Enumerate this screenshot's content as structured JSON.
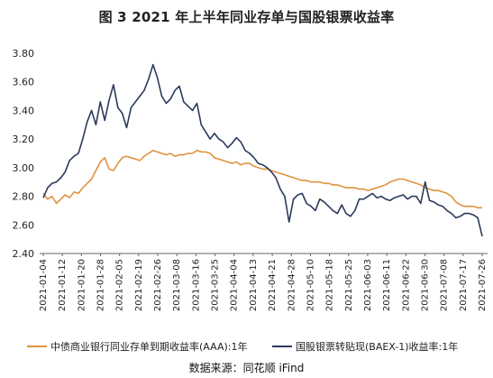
{
  "chart_data": {
    "type": "line",
    "title": "图 3 2021 年上半年同业存单与国股银票收益率",
    "source": "数据来源：同花顺 iFind",
    "ylim": [
      2.4,
      3.8
    ],
    "yticks": [
      "3.80",
      "3.60",
      "3.40",
      "3.20",
      "3.00",
      "2.80",
      "2.60",
      "2.40"
    ],
    "xtick_labels": [
      "2021-01-04",
      "2021-01-12",
      "2021-01-20",
      "2021-01-28",
      "2021-02-05",
      "2021-02-19",
      "2021-02-26",
      "2021-03-08",
      "2021-03-16",
      "2021-03-25",
      "2021-04-04",
      "2021-04-13",
      "2021-04-21",
      "2021-04-28",
      "2021-05-10",
      "2021-05-18",
      "2021-05-25",
      "2021-06-03",
      "2021-06-11",
      "2021-06-22",
      "2021-06-30",
      "2021-07-08",
      "2021-07-17",
      "2021-07-26"
    ],
    "legend_position": "bottom",
    "series": [
      {
        "name": "中债商业银行同业存单到期收益率(AAA):1年",
        "color": "#E0923F",
        "values": [
          2.82,
          2.78,
          2.8,
          2.75,
          2.78,
          2.81,
          2.79,
          2.83,
          2.82,
          2.86,
          2.89,
          2.92,
          2.98,
          3.04,
          3.07,
          2.99,
          2.98,
          3.03,
          3.07,
          3.08,
          3.07,
          3.06,
          3.05,
          3.08,
          3.1,
          3.12,
          3.11,
          3.1,
          3.09,
          3.1,
          3.08,
          3.09,
          3.09,
          3.1,
          3.1,
          3.12,
          3.11,
          3.11,
          3.1,
          3.07,
          3.06,
          3.05,
          3.04,
          3.03,
          3.04,
          3.02,
          3.03,
          3.03,
          3.01,
          3.0,
          2.99,
          2.99,
          2.98,
          2.97,
          2.96,
          2.95,
          2.94,
          2.93,
          2.92,
          2.91,
          2.91,
          2.9,
          2.9,
          2.9,
          2.89,
          2.89,
          2.88,
          2.88,
          2.87,
          2.86,
          2.86,
          2.86,
          2.85,
          2.85,
          2.84,
          2.85,
          2.86,
          2.87,
          2.88,
          2.9,
          2.91,
          2.92,
          2.92,
          2.91,
          2.9,
          2.89,
          2.88,
          2.86,
          2.85,
          2.84,
          2.84,
          2.83,
          2.82,
          2.8,
          2.76,
          2.74,
          2.73,
          2.73,
          2.73,
          2.72,
          2.72
        ]
      },
      {
        "name": "国股银票转贴现(BAEX-1)收益率:1年",
        "color": "#2A3A5C",
        "values": [
          2.79,
          2.86,
          2.89,
          2.9,
          2.93,
          2.97,
          3.05,
          3.08,
          3.1,
          3.2,
          3.32,
          3.4,
          3.3,
          3.46,
          3.33,
          3.47,
          3.58,
          3.42,
          3.38,
          3.28,
          3.42,
          3.46,
          3.5,
          3.54,
          3.62,
          3.72,
          3.63,
          3.5,
          3.45,
          3.48,
          3.54,
          3.57,
          3.46,
          3.43,
          3.4,
          3.45,
          3.3,
          3.25,
          3.2,
          3.24,
          3.2,
          3.18,
          3.14,
          3.17,
          3.21,
          3.18,
          3.12,
          3.1,
          3.07,
          3.03,
          3.02,
          3.0,
          2.97,
          2.93,
          2.85,
          2.8,
          2.62,
          2.78,
          2.81,
          2.82,
          2.75,
          2.73,
          2.7,
          2.78,
          2.76,
          2.73,
          2.7,
          2.68,
          2.74,
          2.68,
          2.66,
          2.7,
          2.78,
          2.78,
          2.8,
          2.82,
          2.79,
          2.8,
          2.78,
          2.77,
          2.79,
          2.8,
          2.81,
          2.78,
          2.8,
          2.8,
          2.75,
          2.9,
          2.77,
          2.76,
          2.74,
          2.73,
          2.7,
          2.68,
          2.65,
          2.66,
          2.68,
          2.68,
          2.67,
          2.65,
          2.52
        ]
      }
    ]
  }
}
